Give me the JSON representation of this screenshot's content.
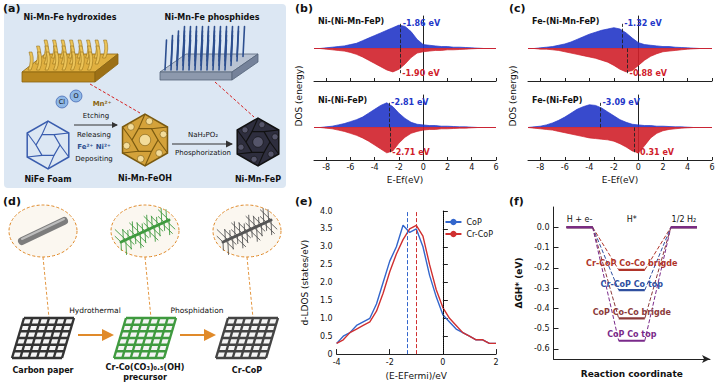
{
  "diagrams": [
    {
      "label": "(a)",
      "top_left": "Ni-Mn-Fe hydroxides",
      "top_right": "Ni-Mn-Fe phosphides",
      "start": "NiFe Foam",
      "middle": "Ni-Mn-FeOH",
      "end": "Ni-Mn-FeP",
      "ions_out": [
        "Cl",
        "O"
      ],
      "etching": "Etching",
      "releasing": "Releasing",
      "released": "Fe²⁺ Ni²⁺",
      "deposited": "Mn²⁺",
      "depositing": "Depositing",
      "reagent": "NaH₂PO₂",
      "process": "Phosphorization"
    },
    {
      "label": "(d)",
      "start": "Carbon paper",
      "step1": "Hydrothermal",
      "middle": [
        "Cr-Co(CO₃)₀.₅(OH)",
        "precursor"
      ],
      "step2": "Phosphidation",
      "end": "Cr-CoP"
    }
  ],
  "chart_data": [
    {
      "type": "area",
      "label": "(b)",
      "y_label": "DOS (energy)",
      "x_label": "E-Ef(eV)",
      "xlim": [
        -9,
        6
      ],
      "xticks": [
        -8,
        -6,
        -4,
        -2,
        0,
        2,
        4,
        6
      ],
      "ylim": [
        -5,
        5
      ],
      "tick_labels": "x",
      "grid": false,
      "x": [
        -9,
        -8.5,
        -8,
        -7.5,
        -7,
        -6.5,
        -6,
        -5.5,
        -5,
        -4.5,
        -4,
        -3.5,
        -3,
        -2.5,
        -2,
        -1.5,
        -1,
        -0.5,
        0,
        0.5,
        1,
        1.5,
        2,
        2.5,
        3,
        3.5,
        4,
        4.5,
        5,
        5.5,
        6
      ],
      "subplots": [
        {
          "title": "Ni-(Ni-Mn-FeP)",
          "series": [
            {
              "color": "#2236c8",
              "annotation": {
                "x": -1.86,
                "label": "-1.86 eV"
              },
              "values": [
                0,
                0,
                0.1,
                0.2,
                0.3,
                0.4,
                0.6,
                0.8,
                1.2,
                1.6,
                2.0,
                2.4,
                2.8,
                3.2,
                3.6,
                3.4,
                2.6,
                1.4,
                0.6,
                0.5,
                0.4,
                0.3,
                0.3,
                0.2,
                0.2,
                0.15,
                0.1,
                0.05,
                0,
                0,
                0
              ]
            },
            {
              "color": "#d0202a",
              "annotation": {
                "x": -1.9,
                "label": "-1.90 eV"
              },
              "values": [
                0,
                0,
                -0.1,
                -0.2,
                -0.3,
                -0.4,
                -0.6,
                -0.9,
                -1.3,
                -1.8,
                -2.3,
                -2.8,
                -3.3,
                -3.6,
                -3.2,
                -2.4,
                -1.4,
                -0.7,
                -0.5,
                -0.4,
                -0.3,
                -0.3,
                -0.2,
                -0.2,
                -0.15,
                -0.1,
                -0.05,
                0,
                0,
                0,
                0
              ]
            }
          ]
        },
        {
          "title": "Ni-(Ni-FeP)",
          "series": [
            {
              "color": "#2236c8",
              "annotation": {
                "x": -2.81,
                "label": "-2.81 eV"
              },
              "values": [
                0,
                0,
                0.1,
                0.2,
                0.4,
                0.6,
                0.9,
                1.2,
                1.6,
                2.2,
                2.8,
                3.4,
                3.8,
                3.2,
                2.2,
                1.4,
                0.8,
                0.5,
                0.4,
                0.3,
                0.3,
                0.2,
                0.2,
                0.15,
                0.1,
                0.1,
                0.05,
                0,
                0,
                0,
                0
              ]
            },
            {
              "color": "#d0202a",
              "annotation": {
                "x": -2.71,
                "label": "-2.71 eV"
              },
              "values": [
                0,
                0,
                -0.1,
                -0.2,
                -0.4,
                -0.6,
                -0.9,
                -1.2,
                -1.6,
                -2.1,
                -2.7,
                -3.3,
                -3.9,
                -3.6,
                -2.4,
                -1.5,
                -0.9,
                -0.6,
                -0.4,
                -0.3,
                -0.3,
                -0.2,
                -0.2,
                -0.15,
                -0.1,
                -0.1,
                -0.05,
                0,
                0,
                0,
                0
              ]
            }
          ]
        }
      ]
    },
    {
      "type": "area",
      "label": "(c)",
      "y_label": "DOS (energy)",
      "x_label": "E-Ef(eV)",
      "xlim": [
        -9,
        6
      ],
      "xticks": [
        -8,
        -6,
        -4,
        -2,
        0,
        2,
        4,
        6
      ],
      "ylim": [
        -5,
        5
      ],
      "tick_labels": "x",
      "grid": false,
      "x": [
        -9,
        -8.5,
        -8,
        -7.5,
        -7,
        -6.5,
        -6,
        -5.5,
        -5,
        -4.5,
        -4,
        -3.5,
        -3,
        -2.5,
        -2,
        -1.5,
        -1,
        -0.5,
        0,
        0.5,
        1,
        1.5,
        2,
        2.5,
        3,
        3.5,
        4,
        4.5,
        5,
        5.5,
        6
      ],
      "subplots": [
        {
          "title": "Fe-(Ni-Mn-FeP)",
          "series": [
            {
              "color": "#2236c8",
              "annotation": {
                "x": -1.32,
                "label": "-1.32 eV"
              },
              "values": [
                0,
                0,
                0.1,
                0.2,
                0.3,
                0.5,
                0.7,
                1.0,
                1.4,
                1.8,
                2.2,
                2.5,
                2.8,
                3.0,
                3.2,
                3.0,
                2.4,
                1.6,
                0.9,
                0.6,
                0.5,
                0.4,
                0.3,
                0.3,
                0.2,
                0.15,
                0.1,
                0.05,
                0,
                0,
                0
              ]
            },
            {
              "color": "#d0202a",
              "annotation": {
                "x": -0.88,
                "label": "-0.88 eV"
              },
              "values": [
                0,
                0,
                -0.1,
                -0.1,
                -0.2,
                -0.3,
                -0.5,
                -0.7,
                -0.9,
                -1.1,
                -1.3,
                -1.5,
                -1.8,
                -2.1,
                -2.6,
                -3.2,
                -3.6,
                -3.4,
                -2.6,
                -1.8,
                -1.2,
                -0.8,
                -0.5,
                -0.4,
                -0.3,
                -0.2,
                -0.1,
                -0.05,
                0,
                0,
                0
              ]
            }
          ]
        },
        {
          "title": "Fe-(Ni-FeP)",
          "series": [
            {
              "color": "#2236c8",
              "annotation": {
                "x": -3.09,
                "label": "-3.09 eV"
              },
              "values": [
                0,
                0.1,
                0.2,
                0.4,
                0.7,
                1.1,
                1.6,
                2.2,
                2.8,
                3.2,
                3.5,
                3.4,
                3.0,
                2.4,
                1.8,
                1.2,
                0.8,
                0.5,
                0.4,
                0.3,
                0.3,
                0.2,
                0.2,
                0.15,
                0.1,
                0.1,
                0.05,
                0,
                0,
                0,
                0
              ]
            },
            {
              "color": "#d0202a",
              "annotation": {
                "x": -0.31,
                "label": "-0.31 eV"
              },
              "values": [
                0,
                -0.1,
                -0.2,
                -0.3,
                -0.4,
                -0.6,
                -0.8,
                -1.0,
                -1.2,
                -1.4,
                -1.6,
                -1.7,
                -1.8,
                -1.9,
                -2.1,
                -2.5,
                -3.0,
                -3.6,
                -3.9,
                -2.8,
                -1.6,
                -0.9,
                -0.5,
                -0.3,
                -0.2,
                -0.1,
                -0.05,
                0,
                0,
                0,
                0
              ]
            }
          ]
        }
      ]
    },
    {
      "type": "line",
      "label": "(e)",
      "x_label": "(E-EFermi)/eV",
      "y_label": "d-LDOS (states/eV)",
      "xlim": [
        -4,
        2
      ],
      "xticks": [
        -4,
        -2,
        0,
        2
      ],
      "ylim": [
        0,
        4
      ],
      "yticks": [
        0,
        0.5,
        {
          "value": 1,
          "label": "1.0"
        },
        1.5,
        {
          "value": 2,
          "label": "2.0"
        },
        2.5,
        {
          "value": 3,
          "label": "3.0"
        },
        3.5,
        {
          "value": 4,
          "label": "4.0"
        }
      ],
      "legend": "upper right",
      "grid": false,
      "x": [
        -4,
        -3.75,
        -3.5,
        -3.25,
        -3,
        -2.75,
        -2.5,
        -2.25,
        -2,
        -1.75,
        -1.5,
        -1.25,
        -1,
        -0.75,
        -0.5,
        -0.25,
        0,
        0.25,
        0.5,
        0.75,
        1,
        1.25,
        1.5,
        1.75,
        2
      ],
      "series": [
        {
          "name": "CoP",
          "color": "#3366cc",
          "values": [
            0.3,
            0.5,
            0.6,
            0.8,
            0.9,
            1.0,
            1.4,
            2.0,
            2.6,
            3.0,
            3.6,
            3.4,
            3.5,
            3.0,
            2.2,
            1.6,
            1.1,
            0.9,
            0.7,
            0.6,
            0.5,
            0.4,
            0.4,
            0.3,
            0.3
          ]
        },
        {
          "name": "Cr-CoP",
          "color": "#d03030",
          "values": [
            0.3,
            0.4,
            0.6,
            0.7,
            0.8,
            0.9,
            1.2,
            1.7,
            2.3,
            2.8,
            3.2,
            3.5,
            3.6,
            3.3,
            2.5,
            1.8,
            1.3,
            1.0,
            0.8,
            0.6,
            0.5,
            0.4,
            0.4,
            0.3,
            0.3
          ]
        }
      ],
      "vlines": [
        {
          "x": -1.35,
          "color": "#3366cc",
          "line_style": "dashed"
        },
        {
          "x": -1.0,
          "color": "#d03030",
          "line_style": "dashed"
        },
        {
          "x": 0,
          "color": "#000000",
          "line_style": "dotted"
        }
      ]
    },
    {
      "type": "profile",
      "label": "(f)",
      "x_label": "Reaction coordinate",
      "y_label": "ΔGH* (eV)",
      "categories": [
        "H + e-",
        "H*",
        "1/2 H₂"
      ],
      "ylim": [
        -0.65,
        0.1
      ],
      "yticks": [
        {
          "value": 0,
          "label": "0.0"
        },
        -0.1,
        -0.2,
        -0.3,
        -0.4,
        -0.5,
        -0.6
      ],
      "grid": false,
      "series": [
        {
          "name": "Cr-CoP Co-Co brigde",
          "color": "#b0342a",
          "values": [
            0,
            -0.21,
            0
          ]
        },
        {
          "name": "Cr-CoP Co top",
          "color": "#2f4f9f",
          "values": [
            0,
            -0.31,
            0
          ]
        },
        {
          "name": "CoP Co-Co brigde",
          "color": "#8b3a3a",
          "values": [
            0,
            -0.45,
            0
          ]
        },
        {
          "name": "CoP Co top",
          "color": "#7a2a8a",
          "values": [
            0,
            -0.56,
            0
          ]
        }
      ]
    }
  ]
}
